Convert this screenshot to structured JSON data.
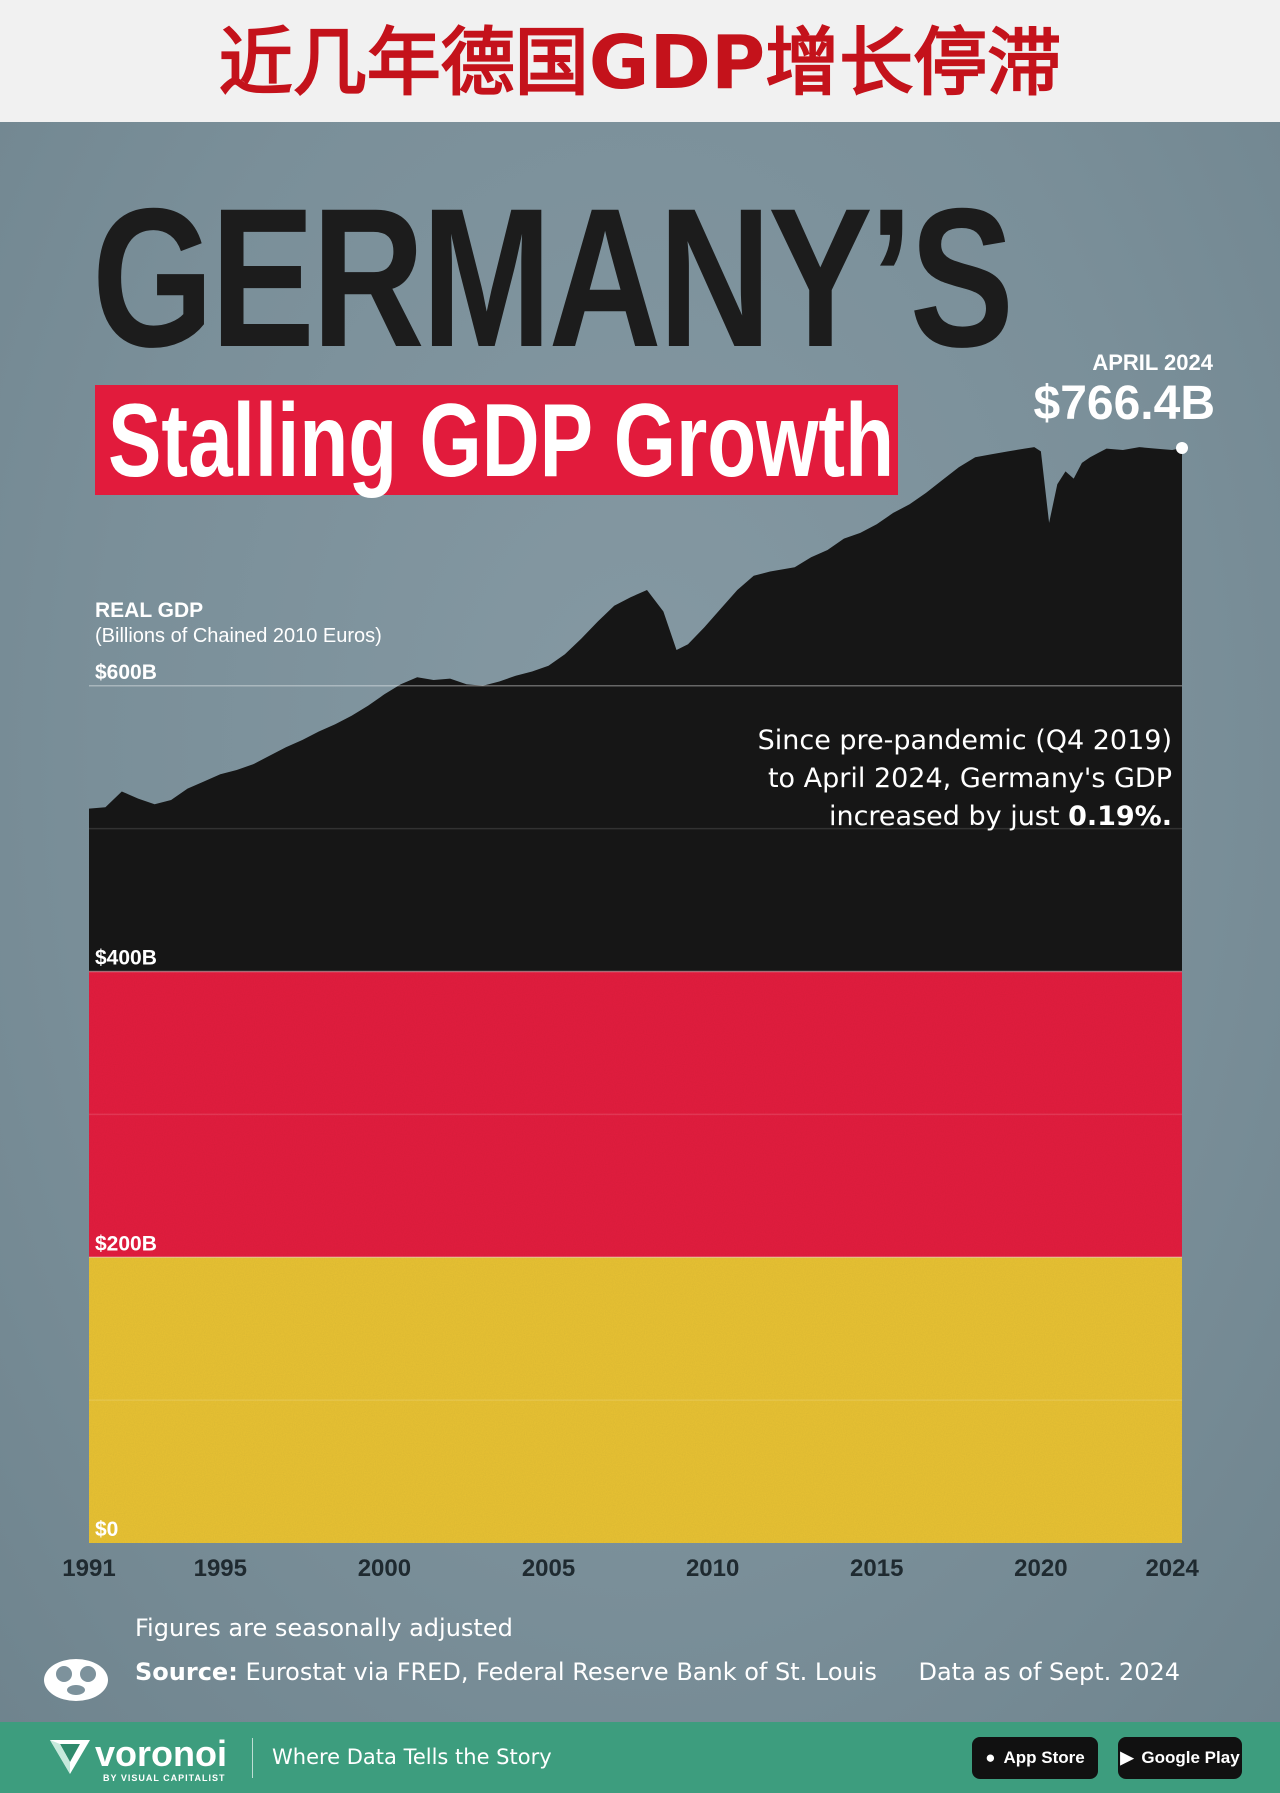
{
  "banner": {
    "title": "近几年德国GDP增长停滞"
  },
  "headline": {
    "line1": "GERMANY’S",
    "line2": "Stalling GDP Growth"
  },
  "axis": {
    "ylabel_title": "REAL GDP",
    "ylabel_sub": "(Billions of Chained 2010 Euros)"
  },
  "callout": {
    "date": "APRIL 2024",
    "value": "$766.4B"
  },
  "note": {
    "text": "Since pre-pandemic (Q4 2019) to April 2024, Germany's GDP increased by just",
    "highlight": "0.19%."
  },
  "footnotes": {
    "seasonal": "Figures are seasonally adjusted",
    "source_label": "Source:",
    "source_text": "Eurostat via FRED, Federal Reserve Bank of St. Louis",
    "as_of": "Data as of Sept. 2024"
  },
  "footer": {
    "brand": "voronoi",
    "brand_sub": "BY VISUAL CAPITALIST",
    "tagline": "Where Data Tells the Story",
    "app_store": "App Store",
    "google_play": "Google Play"
  },
  "colors": {
    "black": "#1e1e1e",
    "red": "#e3213f",
    "gold": "#e8c235",
    "background": "#7d929c",
    "banner_text": "#c4121b",
    "footer": "#3d9d7e"
  },
  "icons": [
    "voronoi-mark-icon",
    "visual-capitalist-logo-icon",
    "apple-icon",
    "play-icon"
  ],
  "chart_data": {
    "type": "area",
    "ylim": [
      0,
      800
    ],
    "xlim": [
      1991,
      2024.3
    ],
    "yticks": [
      0,
      200,
      400,
      600
    ],
    "ytick_labels": [
      "$0",
      "$200B",
      "$400B",
      "$600B"
    ],
    "xticks": [
      1991,
      1995,
      2000,
      2005,
      2010,
      2015,
      2020,
      2024
    ],
    "xtick_labels": [
      "1991",
      "1995",
      "2000",
      "2005",
      "2010",
      "2015",
      "2020",
      "2024"
    ],
    "grid": true,
    "series": [
      {
        "x": [
          1991,
          1991.5,
          1992,
          1992.5,
          1993,
          1993.5,
          1994,
          1994.5,
          1995,
          1995.5,
          1996,
          1996.5,
          1997,
          1997.5,
          1998,
          1998.5,
          1999,
          1999.5,
          2000,
          2000.5,
          2001,
          2001.5,
          2002,
          2002.5,
          2003,
          2003.5,
          2004,
          2004.5,
          2005,
          2005.5,
          2006,
          2006.5,
          2007,
          2007.5,
          2008,
          2008.5,
          2008.9,
          2009.25,
          2009.75,
          2010.25,
          2010.75,
          2011.25,
          2011.75,
          2012.5,
          2013,
          2013.5,
          2014,
          2014.5,
          2015,
          2015.5,
          2016,
          2016.5,
          2017,
          2017.5,
          2018,
          2018.5,
          2019,
          2019.5,
          2019.8,
          2020.0,
          2020.25,
          2020.5,
          2020.75,
          2021,
          2021.25,
          2021.5,
          2021.75,
          2022,
          2022.5,
          2023,
          2023.5,
          2024.0,
          2024.3
        ],
        "values": [
          514,
          515,
          526,
          521,
          517,
          520,
          528,
          533,
          538,
          541,
          545,
          551,
          557,
          562,
          568,
          573,
          579,
          586,
          594,
          601,
          606,
          604,
          605,
          601,
          600,
          603,
          607,
          610,
          614,
          622,
          633,
          645,
          656,
          662,
          667,
          652,
          625,
          629,
          641,
          654,
          667,
          677,
          680,
          683,
          690,
          695,
          703,
          707,
          713,
          721,
          727,
          735,
          744,
          753,
          760,
          762,
          764,
          766,
          767,
          764,
          714,
          741,
          750,
          745,
          756,
          760,
          763,
          766,
          765,
          767,
          766,
          765,
          766.4
        ]
      }
    ]
  }
}
